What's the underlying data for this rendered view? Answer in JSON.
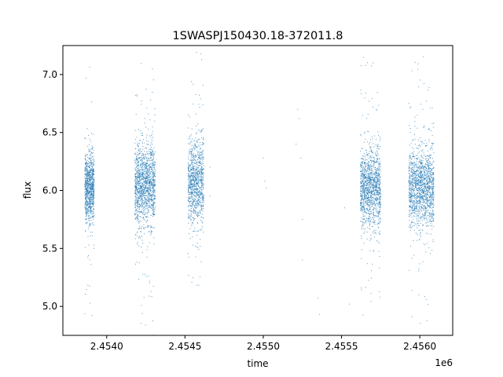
{
  "chart_data": {
    "type": "scatter",
    "title": "1SWASPJ150430.18-372011.8",
    "xlabel": "time",
    "ylabel": "flux",
    "x_offset_label": "1e6",
    "xlim": [
      2.45372,
      2.45621
    ],
    "ylim": [
      4.75,
      7.25
    ],
    "x_ticks": [
      2.454,
      2.4545,
      2.455,
      2.4555,
      2.456
    ],
    "x_tick_labels": [
      "2.4540",
      "2.4545",
      "2.4550",
      "2.4555",
      "2.4560"
    ],
    "y_ticks": [
      5.0,
      5.5,
      6.0,
      6.5,
      7.0
    ],
    "y_tick_labels": [
      "5.0",
      "5.5",
      "6.0",
      "6.5",
      "7.0"
    ],
    "grid": false,
    "legend": "none",
    "series": [
      {
        "marker_color": "#1f77b4",
        "clusters": [
          {
            "x_range": [
              2.45386,
              2.45392
            ],
            "center": 6.02,
            "spread": 0.17,
            "points": 900
          },
          {
            "x_range": [
              2.45418,
              2.45431
            ],
            "center": 6.05,
            "spread": 0.2,
            "points": 1400
          },
          {
            "x_range": [
              2.45452,
              2.45462
            ],
            "center": 6.07,
            "spread": 0.21,
            "points": 1000
          },
          {
            "x_range": [
              2.45562,
              2.45575
            ],
            "center": 6.02,
            "spread": 0.19,
            "points": 1300
          },
          {
            "x_range": [
              2.45593,
              2.45609
            ],
            "center": 6.02,
            "spread": 0.19,
            "points": 1500
          }
        ],
        "sparse_points": [
          [
            2.455,
            6.28
          ],
          [
            2.45501,
            6.08
          ],
          [
            2.45502,
            6.02
          ],
          [
            2.45522,
            6.7
          ],
          [
            2.45523,
            6.62
          ],
          [
            2.45524,
            6.28
          ],
          [
            2.45525,
            5.75
          ],
          [
            2.45525,
            5.4
          ],
          [
            2.45521,
            6.4
          ],
          [
            2.45535,
            5.07
          ],
          [
            2.45536,
            4.93
          ],
          [
            2.45466,
            6.2
          ],
          [
            2.45466,
            5.95
          ],
          [
            2.45555,
            5.02
          ],
          [
            2.45552,
            5.85
          ]
        ]
      }
    ]
  }
}
